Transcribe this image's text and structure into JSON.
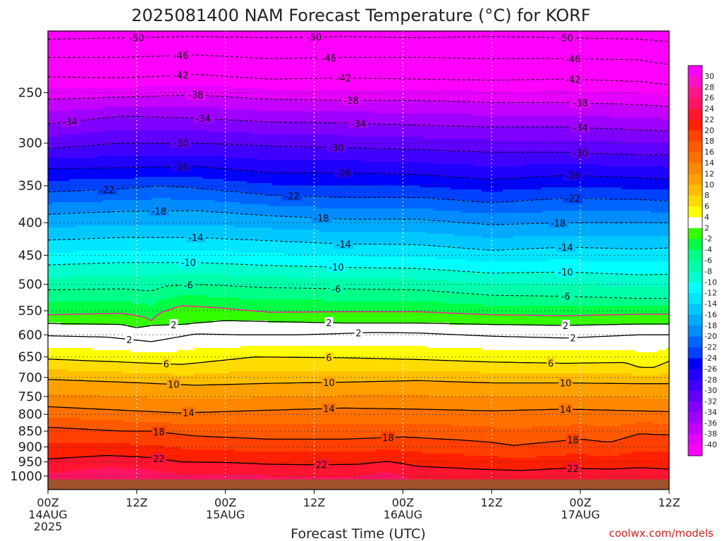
{
  "chart_data": {
    "type": "heatmap",
    "title": "2025081400 NAM Forecast Temperature (°C) for KORF",
    "xlabel": "Forecast Time (UTC)",
    "credit": "coolwx.com/models",
    "x_ticks": [
      {
        "hour": 0,
        "lines": [
          "00Z",
          "14AUG",
          "2025"
        ]
      },
      {
        "hour": 12,
        "lines": [
          "12Z"
        ]
      },
      {
        "hour": 24,
        "lines": [
          "00Z",
          "15AUG"
        ]
      },
      {
        "hour": 36,
        "lines": [
          "12Z"
        ]
      },
      {
        "hour": 48,
        "lines": [
          "00Z",
          "16AUG"
        ]
      },
      {
        "hour": 60,
        "lines": [
          "12Z"
        ]
      },
      {
        "hour": 72,
        "lines": [
          "00Z",
          "17AUG"
        ]
      },
      {
        "hour": 84,
        "lines": [
          "12Z"
        ]
      }
    ],
    "y_ticks": [
      250,
      300,
      350,
      400,
      450,
      500,
      550,
      600,
      650,
      700,
      750,
      800,
      850,
      900,
      950,
      1000
    ],
    "y_scale": "log",
    "y_range_hpa": [
      200,
      1050
    ],
    "x_range_hours": [
      0,
      84
    ],
    "surface_pressure_hpa": 1012,
    "colorbar_levels": [
      30,
      28,
      26,
      24,
      22,
      20,
      18,
      16,
      14,
      12,
      10,
      8,
      6,
      4,
      2,
      -2,
      -4,
      -6,
      -8,
      -10,
      -12,
      -14,
      -16,
      -18,
      -20,
      -22,
      -24,
      -26,
      -28,
      -30,
      -32,
      -34,
      -36,
      -38,
      -40
    ],
    "colorbar_colors": [
      "#ff00ff",
      "#ff10c8",
      "#ff148c",
      "#ff1464",
      "#ff1432",
      "#ff2000",
      "#ff4000",
      "#ff5a00",
      "#ff7000",
      "#ff8800",
      "#ffa000",
      "#ffbe00",
      "#ffdc00",
      "#ffff00",
      "#ffffff",
      "#33ff00",
      "#00ff44",
      "#00ff88",
      "#00ffaa",
      "#00ffcc",
      "#00ffff",
      "#00e6ff",
      "#00c8ff",
      "#00aaff",
      "#008cff",
      "#0064ff",
      "#0040ff",
      "#0000ff",
      "#2000ff",
      "#4000ff",
      "#6000ff",
      "#8000ff",
      "#a000ff",
      "#c400ff",
      "#e600ff",
      "#ff00ff"
    ],
    "freezing_line_color": "#ff1493",
    "surface_color": "#a0522d",
    "isotherms": [
      {
        "t": -50,
        "labels": [
          {
            "hour": 12
          },
          {
            "hour": 36
          },
          {
            "hour": 70
          }
        ],
        "p": [
          [
            0,
            206
          ],
          [
            10,
            205
          ],
          [
            20,
            204
          ],
          [
            30,
            205
          ],
          [
            40,
            204
          ],
          [
            50,
            205
          ],
          [
            60,
            204
          ],
          [
            70,
            205
          ],
          [
            80,
            206
          ],
          [
            84,
            208
          ]
        ]
      },
      {
        "t": -46,
        "labels": [
          {
            "hour": 18
          },
          {
            "hour": 38
          },
          {
            "hour": 71
          }
        ],
        "p": [
          [
            0,
            220
          ],
          [
            10,
            220
          ],
          [
            20,
            218
          ],
          [
            30,
            221
          ],
          [
            40,
            220
          ],
          [
            50,
            220
          ],
          [
            60,
            221
          ],
          [
            70,
            221
          ],
          [
            80,
            222
          ],
          [
            84,
            226
          ]
        ]
      },
      {
        "t": -42,
        "labels": [
          {
            "hour": 18
          },
          {
            "hour": 40
          },
          {
            "hour": 71
          }
        ],
        "p": [
          [
            0,
            236
          ],
          [
            10,
            237
          ],
          [
            20,
            234
          ],
          [
            30,
            238
          ],
          [
            40,
            237
          ],
          [
            50,
            238
          ],
          [
            60,
            239
          ],
          [
            70,
            238
          ],
          [
            80,
            240
          ],
          [
            84,
            243
          ]
        ]
      },
      {
        "t": -38,
        "labels": [
          {
            "hour": 20
          },
          {
            "hour": 41
          },
          {
            "hour": 72
          }
        ],
        "p": [
          [
            0,
            256
          ],
          [
            10,
            254
          ],
          [
            20,
            252
          ],
          [
            30,
            256
          ],
          [
            40,
            257
          ],
          [
            50,
            257
          ],
          [
            60,
            259
          ],
          [
            70,
            259
          ],
          [
            80,
            261
          ],
          [
            84,
            263
          ]
        ]
      },
      {
        "t": -34,
        "labels": [
          {
            "hour": 3
          },
          {
            "hour": 21
          },
          {
            "hour": 42
          },
          {
            "hour": 72
          }
        ],
        "p": [
          [
            0,
            280
          ],
          [
            10,
            272
          ],
          [
            20,
            274
          ],
          [
            30,
            278
          ],
          [
            40,
            279
          ],
          [
            50,
            281
          ],
          [
            60,
            283
          ],
          [
            70,
            283
          ],
          [
            80,
            286
          ],
          [
            84,
            287
          ]
        ]
      },
      {
        "t": -30,
        "labels": [
          {
            "hour": 18
          },
          {
            "hour": 39
          },
          {
            "hour": 72
          }
        ],
        "p": [
          [
            0,
            306
          ],
          [
            10,
            300
          ],
          [
            20,
            300
          ],
          [
            30,
            303
          ],
          [
            40,
            305
          ],
          [
            50,
            307
          ],
          [
            60,
            310
          ],
          [
            70,
            310
          ],
          [
            80,
            313
          ],
          [
            84,
            313
          ]
        ]
      },
      {
        "t": -26,
        "labels": [
          {
            "hour": 18
          },
          {
            "hour": 40
          },
          {
            "hour": 71
          }
        ],
        "p": [
          [
            0,
            329
          ],
          [
            10,
            328
          ],
          [
            20,
            326
          ],
          [
            30,
            334
          ],
          [
            40,
            334
          ],
          [
            50,
            336
          ],
          [
            60,
            342
          ],
          [
            70,
            337
          ],
          [
            80,
            340
          ],
          [
            84,
            342
          ]
        ]
      },
      {
        "t": -22,
        "labels": [
          {
            "hour": 8
          },
          {
            "hour": 33
          },
          {
            "hour": 71
          }
        ],
        "p": [
          [
            0,
            358
          ],
          [
            10,
            354
          ],
          [
            15,
            350
          ],
          [
            20,
            353
          ],
          [
            30,
            362
          ],
          [
            40,
            365
          ],
          [
            50,
            365
          ],
          [
            60,
            372
          ],
          [
            70,
            366
          ],
          [
            80,
            368
          ],
          [
            84,
            370
          ]
        ]
      },
      {
        "t": -18,
        "labels": [
          {
            "hour": 15
          },
          {
            "hour": 37
          },
          {
            "hour": 69
          }
        ],
        "p": [
          [
            0,
            388
          ],
          [
            10,
            384
          ],
          [
            20,
            383
          ],
          [
            30,
            390
          ],
          [
            40,
            395
          ],
          [
            50,
            395
          ],
          [
            60,
            403
          ],
          [
            70,
            400
          ],
          [
            80,
            400
          ],
          [
            84,
            400
          ]
        ]
      },
      {
        "t": -14,
        "labels": [
          {
            "hour": 20
          },
          {
            "hour": 40
          },
          {
            "hour": 70
          }
        ],
        "p": [
          [
            0,
            426
          ],
          [
            10,
            422
          ],
          [
            20,
            422
          ],
          [
            30,
            427
          ],
          [
            40,
            432
          ],
          [
            50,
            433
          ],
          [
            60,
            442
          ],
          [
            70,
            437
          ],
          [
            80,
            440
          ],
          [
            84,
            438
          ]
        ]
      },
      {
        "t": -10,
        "labels": [
          {
            "hour": 19
          },
          {
            "hour": 39
          },
          {
            "hour": 70
          }
        ],
        "p": [
          [
            0,
            466
          ],
          [
            10,
            462
          ],
          [
            20,
            462
          ],
          [
            30,
            467
          ],
          [
            40,
            470
          ],
          [
            50,
            472
          ],
          [
            60,
            480
          ],
          [
            70,
            478
          ],
          [
            80,
            483
          ],
          [
            84,
            482
          ]
        ]
      },
      {
        "t": -6,
        "labels": [
          {
            "hour": 19
          },
          {
            "hour": 39
          },
          {
            "hour": 70
          }
        ],
        "p": [
          [
            0,
            510
          ],
          [
            10,
            508
          ],
          [
            14,
            512
          ],
          [
            16,
            503
          ],
          [
            20,
            500
          ],
          [
            30,
            506
          ],
          [
            40,
            508
          ],
          [
            50,
            510
          ],
          [
            60,
            520
          ],
          [
            70,
            522
          ],
          [
            80,
            526
          ],
          [
            84,
            526
          ]
        ]
      },
      {
        "t": -2,
        "labels": [],
        "p": [
          [
            0,
            558
          ],
          [
            10,
            555
          ],
          [
            13,
            562
          ],
          [
            14,
            570
          ],
          [
            15,
            555
          ],
          [
            18,
            540
          ],
          [
            22,
            543
          ],
          [
            30,
            553
          ],
          [
            40,
            552
          ],
          [
            50,
            552
          ],
          [
            60,
            558
          ],
          [
            70,
            560
          ],
          [
            80,
            557
          ],
          [
            84,
            557
          ]
        ]
      },
      {
        "t": 2,
        "labels": [
          {
            "hour": 17
          },
          {
            "hour": 38
          },
          {
            "hour": 70
          }
        ],
        "p": [
          [
            0,
            576
          ],
          [
            10,
            578
          ],
          [
            12,
            585
          ],
          [
            14,
            580
          ],
          [
            18,
            578
          ],
          [
            20,
            575
          ],
          [
            24,
            570
          ],
          [
            30,
            572
          ],
          [
            40,
            575
          ],
          [
            50,
            575
          ],
          [
            60,
            578
          ],
          [
            70,
            580
          ],
          [
            80,
            577
          ],
          [
            84,
            577
          ]
        ]
      },
      {
        "t": 2,
        "labels": [
          {
            "hour": 11
          },
          {
            "hour": 42
          },
          {
            "hour": 71
          }
        ],
        "p": [
          [
            0,
            602
          ],
          [
            8,
            605
          ],
          [
            14,
            615
          ],
          [
            20,
            598
          ],
          [
            26,
            600
          ],
          [
            34,
            600
          ],
          [
            44,
            595
          ],
          [
            50,
            596
          ],
          [
            60,
            603
          ],
          [
            70,
            607
          ],
          [
            80,
            600
          ],
          [
            84,
            600
          ]
        ]
      },
      {
        "t": 6,
        "labels": [
          {
            "hour": 16
          },
          {
            "hour": 38
          },
          {
            "hour": 68
          }
        ],
        "p": [
          [
            0,
            655
          ],
          [
            10,
            662
          ],
          [
            18,
            668
          ],
          [
            28,
            650
          ],
          [
            40,
            652
          ],
          [
            50,
            656
          ],
          [
            60,
            662
          ],
          [
            70,
            665
          ],
          [
            78,
            663
          ],
          [
            80,
            675
          ],
          [
            82,
            675
          ],
          [
            84,
            660
          ]
        ]
      },
      {
        "t": 10,
        "labels": [
          {
            "hour": 17
          },
          {
            "hour": 38
          },
          {
            "hour": 70
          }
        ],
        "p": [
          [
            0,
            705
          ],
          [
            10,
            712
          ],
          [
            20,
            720
          ],
          [
            30,
            715
          ],
          [
            40,
            712
          ],
          [
            50,
            708
          ],
          [
            60,
            714
          ],
          [
            70,
            714
          ],
          [
            80,
            716
          ],
          [
            84,
            716
          ]
        ]
      },
      {
        "t": 14,
        "labels": [
          {
            "hour": 19
          },
          {
            "hour": 38
          },
          {
            "hour": 70
          }
        ],
        "p": [
          [
            0,
            778
          ],
          [
            10,
            788
          ],
          [
            18,
            796
          ],
          [
            30,
            788
          ],
          [
            40,
            782
          ],
          [
            50,
            785
          ],
          [
            60,
            790
          ],
          [
            70,
            785
          ],
          [
            80,
            790
          ],
          [
            84,
            792
          ]
        ]
      },
      {
        "t": 18,
        "labels": [
          {
            "hour": 15
          },
          {
            "hour": 46
          },
          {
            "hour": 71
          }
        ],
        "p": [
          [
            0,
            838
          ],
          [
            10,
            850
          ],
          [
            14,
            850
          ],
          [
            20,
            865
          ],
          [
            30,
            875
          ],
          [
            40,
            875
          ],
          [
            48,
            868
          ],
          [
            56,
            878
          ],
          [
            60,
            885
          ],
          [
            63,
            895
          ],
          [
            66,
            888
          ],
          [
            72,
            875
          ],
          [
            76,
            885
          ],
          [
            80,
            858
          ],
          [
            84,
            862
          ]
        ]
      },
      {
        "t": 22,
        "labels": [
          {
            "hour": 15
          },
          {
            "hour": 37
          },
          {
            "hour": 71
          }
        ],
        "p": [
          [
            0,
            940
          ],
          [
            8,
            928
          ],
          [
            14,
            935
          ],
          [
            18,
            950
          ],
          [
            24,
            952
          ],
          [
            30,
            958
          ],
          [
            36,
            960
          ],
          [
            42,
            958
          ],
          [
            46,
            948
          ],
          [
            50,
            965
          ],
          [
            58,
            975
          ],
          [
            64,
            980
          ],
          [
            70,
            972
          ],
          [
            76,
            975
          ],
          [
            80,
            970
          ],
          [
            84,
            975
          ]
        ]
      }
    ]
  }
}
